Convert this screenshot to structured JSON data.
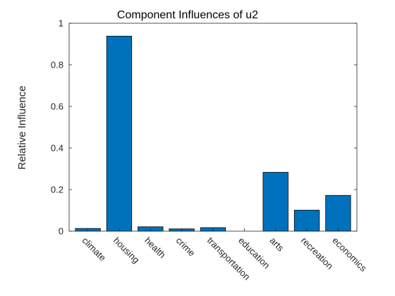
{
  "chart_data": {
    "type": "bar",
    "title": "Component Influences of u2",
    "xlabel": "",
    "ylabel": "Relative Influence",
    "categories": [
      "climate",
      "housing",
      "health",
      "crime",
      "transportation",
      "education",
      "arts",
      "recreation",
      "economics"
    ],
    "values": [
      0.013,
      0.938,
      0.021,
      0.011,
      0.017,
      0.0,
      0.283,
      0.101,
      0.172
    ],
    "ylim": [
      0,
      1
    ],
    "yticks": [
      0,
      0.2,
      0.4,
      0.6,
      0.8,
      1
    ],
    "ytick_labels": [
      "0",
      "0.2",
      "0.4",
      "0.6",
      "0.8",
      "1"
    ],
    "bar_color": "#0072BD",
    "edge_color": "#000000",
    "grid": false
  }
}
